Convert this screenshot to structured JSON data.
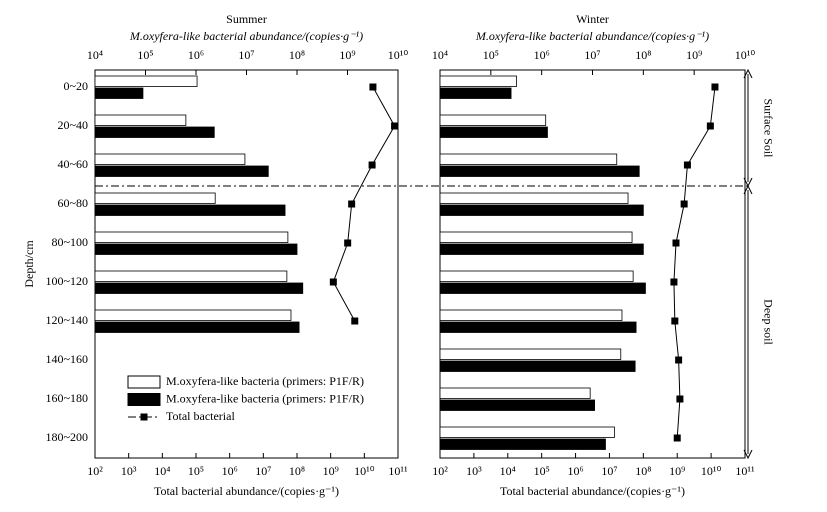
{
  "chart_data": [
    {
      "type": "bar",
      "title": "Summer",
      "xlabel": "M.oxyfera-like bacterial abundance/(copies·g⁻¹)",
      "x2label": "Total bacterial abundance/(copies·g⁻¹)",
      "ylabel": "Depth/cm",
      "categories": [
        "0~20",
        "20~40",
        "40~60",
        "60~80",
        "80~100",
        "100~120",
        "120~140",
        "140~160",
        "160~180",
        "180~200"
      ],
      "log": true,
      "legend": "lower left",
      "xlim": [
        10000,
        10000000000
      ],
      "xticks": [
        {
          "value": 10000,
          "label": "10⁴"
        },
        {
          "value": 100000,
          "label": "10⁵"
        },
        {
          "value": 1000000,
          "label": "10⁶"
        },
        {
          "value": 10000000,
          "label": "10⁷"
        },
        {
          "value": 100000000,
          "label": "10⁸"
        },
        {
          "value": 1000000000,
          "label": "10⁹"
        },
        {
          "value": 10000000000,
          "label": "10¹⁰"
        }
      ],
      "x2lim": [
        100,
        100000000000
      ],
      "x2ticks": [
        {
          "value": 100,
          "label": "10²"
        },
        {
          "value": 1000,
          "label": "10³"
        },
        {
          "value": 10000,
          "label": "10⁴"
        },
        {
          "value": 100000,
          "label": "10⁵"
        },
        {
          "value": 1000000,
          "label": "10⁶"
        },
        {
          "value": 10000000,
          "label": "10⁷"
        },
        {
          "value": 100000000,
          "label": "10⁸"
        },
        {
          "value": 1000000000,
          "label": "10⁹"
        },
        {
          "value": 10000000000,
          "label": "10¹⁰"
        },
        {
          "value": 100000000000,
          "label": "10¹¹"
        }
      ],
      "series": [
        {
          "name": "M.oxyfera-like bacteria (primers: P1F/R)",
          "color": "#ffffff",
          "values": [
            1050000,
            630000,
            9300000,
            2400000,
            66000000,
            63000000,
            76000000,
            null,
            null,
            null
          ]
        },
        {
          "name": "M.oxyfera-like bacteria (primers: P1F/R)",
          "color": "#000000",
          "values": [
            89000,
            2300000,
            27000000,
            58000000,
            100000000,
            130000000,
            110000000,
            null,
            null,
            null
          ]
        },
        {
          "name": "Total bacterial",
          "color": "#000000",
          "type": "line",
          "axis": "x2",
          "values": [
            18000000000,
            79000000000,
            17000000000,
            4200000000,
            3200000000,
            1200000000,
            5200000000,
            null,
            null,
            null
          ]
        }
      ],
      "regions": [
        "Surface Soil",
        "Deep soil"
      ]
    },
    {
      "type": "bar",
      "title": "Winter",
      "xlabel": "M.oxyfera-like bacterial abundance/(copies·g⁻¹)",
      "x2label": "Total bacterial abundance/(copies·g⁻¹)",
      "log": true,
      "xlim": [
        10000,
        10000000000
      ],
      "xticks": [
        {
          "value": 10000,
          "label": "10⁴"
        },
        {
          "value": 100000,
          "label": "10⁵"
        },
        {
          "value": 1000000,
          "label": "10⁶"
        },
        {
          "value": 10000000,
          "label": "10⁷"
        },
        {
          "value": 100000000,
          "label": "10⁸"
        },
        {
          "value": 1000000000,
          "label": "10⁹"
        },
        {
          "value": 10000000000,
          "label": "10¹⁰"
        }
      ],
      "x2lim": [
        100,
        100000000000
      ],
      "x2ticks": [
        {
          "value": 100,
          "label": "10²"
        },
        {
          "value": 1000,
          "label": "10³"
        },
        {
          "value": 10000,
          "label": "10⁴"
        },
        {
          "value": 100000,
          "label": "10⁵"
        },
        {
          "value": 1000000,
          "label": "10⁶"
        },
        {
          "value": 10000000,
          "label": "10⁷"
        },
        {
          "value": 100000000,
          "label": "10⁸"
        },
        {
          "value": 1000000000,
          "label": "10⁹"
        },
        {
          "value": 10000000000,
          "label": "10¹⁰"
        },
        {
          "value": 100000000000,
          "label": "10¹¹"
        }
      ],
      "series": [
        {
          "name": "M.oxyfera-like bacteria (primers: P1F/R)",
          "color": "#ffffff",
          "values": [
            320000,
            1200000,
            30000000,
            50000000,
            60000000,
            63000000,
            38000000,
            36000000,
            9000000,
            27000000
          ]
        },
        {
          "name": "M.oxyfera-like bacteria (primers: P1F/R)",
          "color": "#000000",
          "values": [
            250000,
            1300000,
            83000000,
            100000000,
            100000000,
            110000000,
            72000000,
            69000000,
            11000000,
            18000000
          ]
        },
        {
          "name": "Total bacterial",
          "color": "#000000",
          "type": "line",
          "axis": "x2",
          "values": [
            13000000000,
            9500000000,
            2000000000,
            1600000000,
            920000000,
            800000000,
            850000000,
            1100000000,
            1200000000,
            1000000000
          ]
        }
      ]
    }
  ]
}
